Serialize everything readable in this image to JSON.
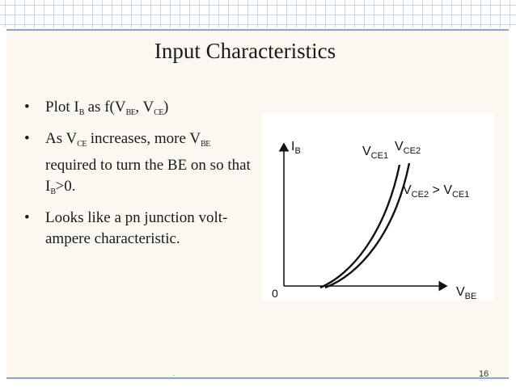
{
  "slide": {
    "title": "Input Characteristics",
    "bullets": [
      {
        "parts": [
          {
            "t": "Plot I"
          },
          {
            "s": "B"
          },
          {
            "t": " as f(V"
          },
          {
            "s": "BE"
          },
          {
            "t": ", V"
          },
          {
            "s": "CE"
          },
          {
            "t": ")"
          }
        ]
      },
      {
        "parts": [
          {
            "t": "As V"
          },
          {
            "s": "CE"
          },
          {
            "t": " increases, more V"
          },
          {
            "s": "BE"
          },
          {
            "t": " required to turn the BE on so that  I"
          },
          {
            "s": "B"
          },
          {
            "t": ">0."
          }
        ]
      },
      {
        "parts": [
          {
            "t": "Looks like a pn junction volt-ampere characteristic."
          }
        ]
      }
    ],
    "figure": {
      "y_axis_label": "I",
      "y_axis_sub": "B",
      "x_axis_label": "V",
      "x_axis_sub": "BE",
      "origin_label": "0",
      "curve1_label": "V",
      "curve1_sub": "CE1",
      "curve2_label": "V",
      "curve2_sub": "CE2",
      "relation_left": "V",
      "relation_left_sub": "CE2",
      "relation_op": " > V",
      "relation_right_sub": "CE1"
    },
    "footer_mark": ".",
    "page_number": "16"
  },
  "colors": {
    "rule": "#8ea6c4",
    "grid": "#c9d6e6",
    "slide_background": "#fbf8f2"
  }
}
